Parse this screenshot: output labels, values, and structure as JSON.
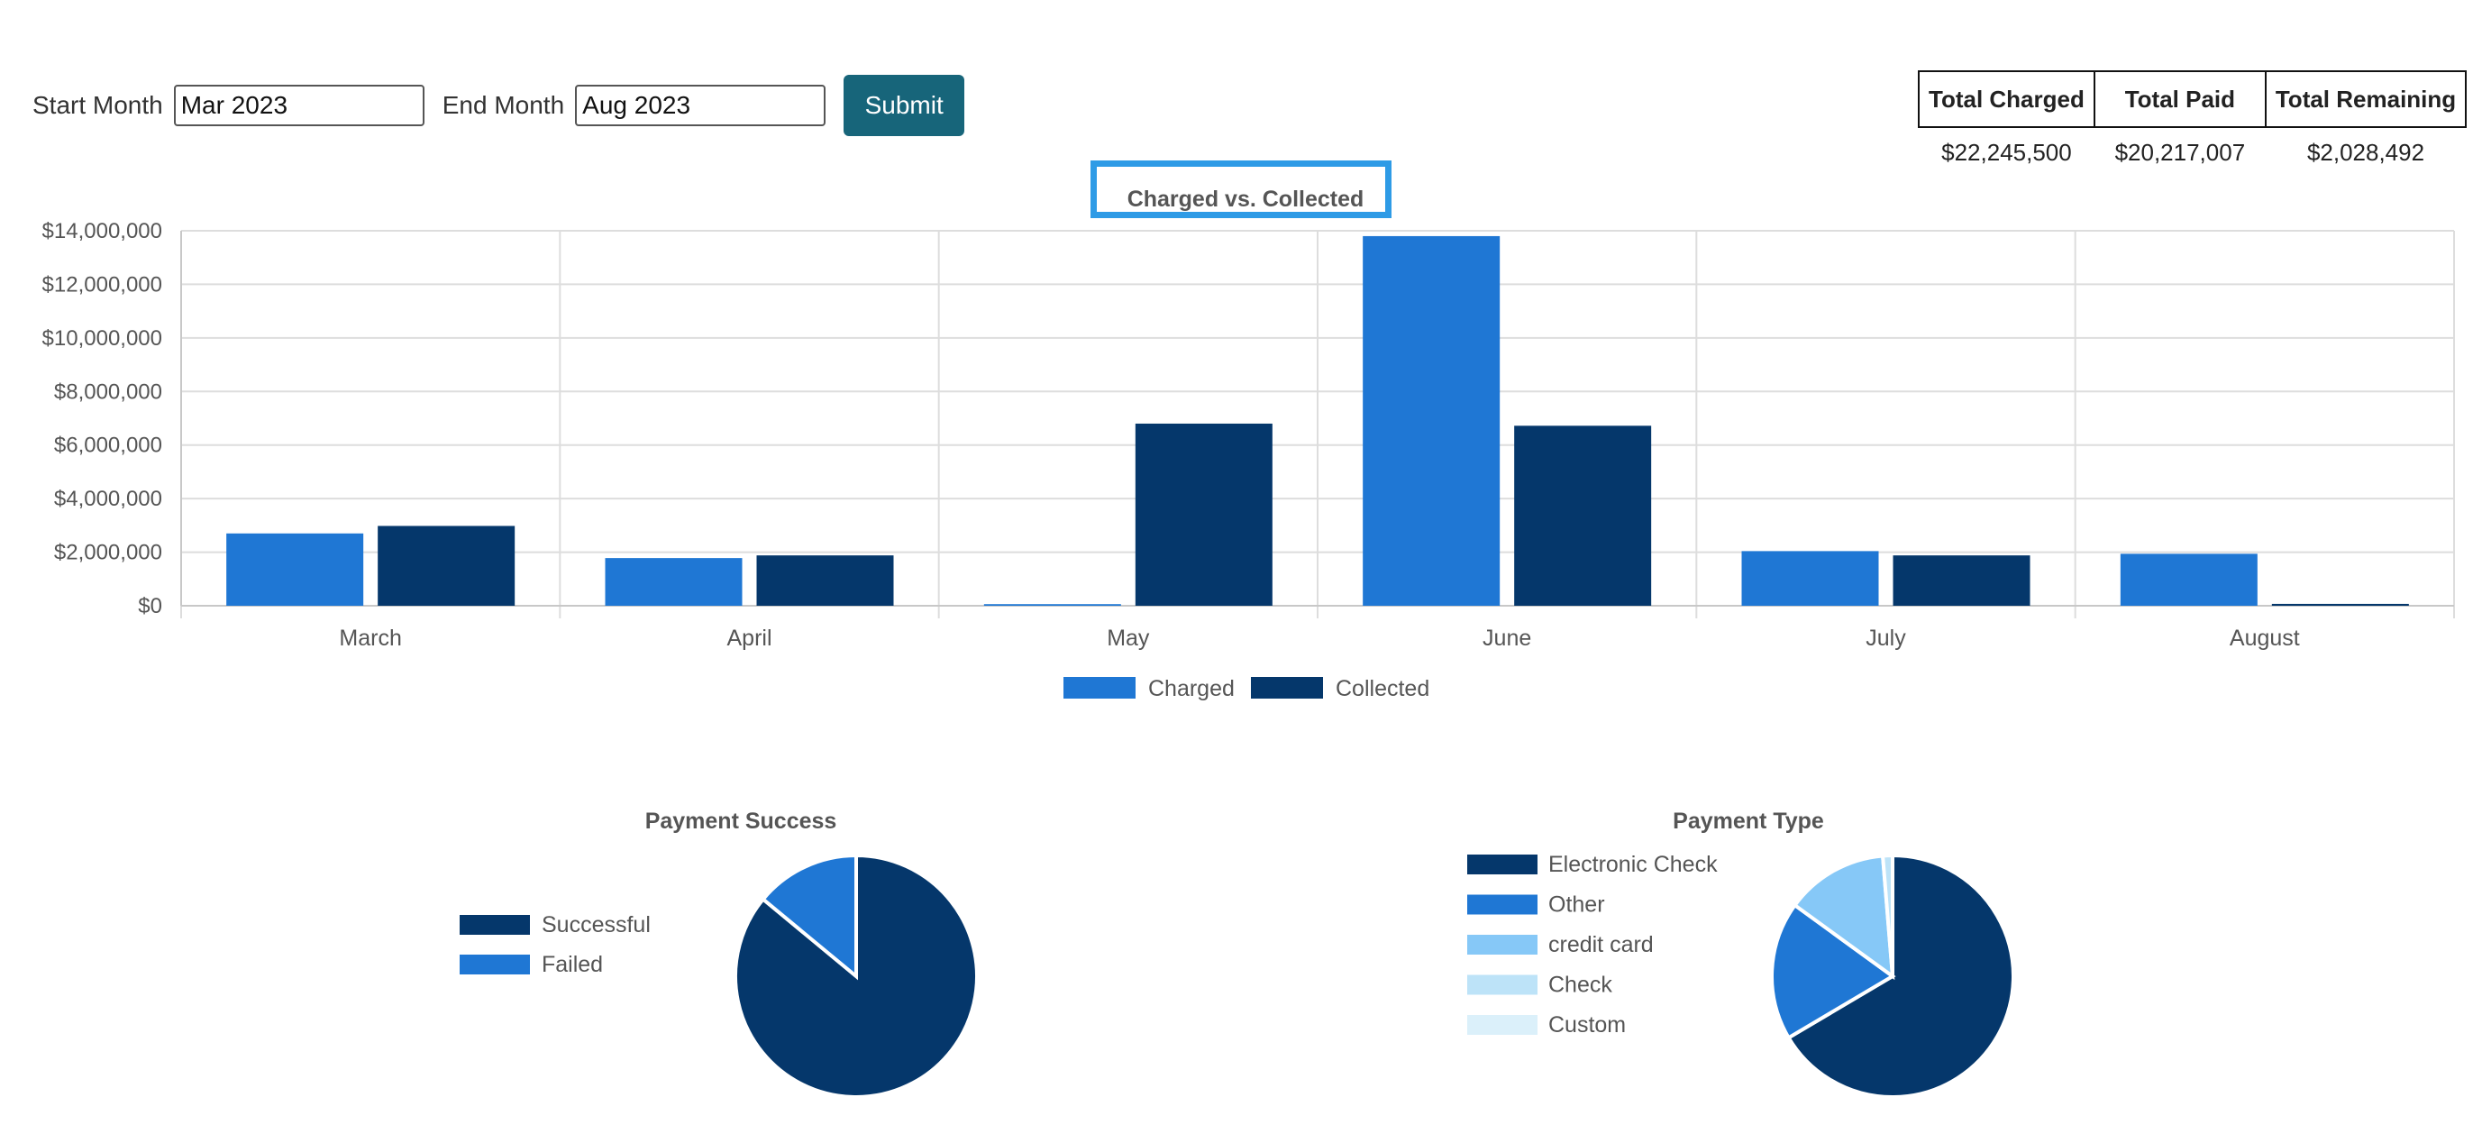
{
  "filters": {
    "start_label": "Start Month",
    "start_value": "Mar 2023",
    "end_label": "End Month",
    "end_value": "Aug 2023",
    "submit_label": "Submit"
  },
  "totals": {
    "headers": [
      "Total Charged",
      "Total Paid",
      "Total Remaining"
    ],
    "values": [
      "$22,245,500",
      "$20,217,007",
      "$2,028,492"
    ]
  },
  "colors": {
    "charged": "#1f77d4",
    "collected": "#05376b",
    "credit_card": "#86c8f7",
    "check": "#bde3f8",
    "custom": "#dbf0fa",
    "title_highlight": "#2e9be6",
    "submit": "#17657a"
  },
  "chart_data": [
    {
      "type": "bar",
      "title": "Charged vs. Collected",
      "categories": [
        "March",
        "April",
        "May",
        "June",
        "July",
        "August"
      ],
      "series": [
        {
          "name": "Charged",
          "values": [
            2700000,
            1780000,
            60000,
            13800000,
            2040000,
            1940000
          ]
        },
        {
          "name": "Collected",
          "values": [
            2980000,
            1880000,
            6800000,
            6720000,
            1880000,
            70000
          ]
        }
      ],
      "ylim": [
        0,
        14000000
      ],
      "yticks": [
        0,
        2000000,
        4000000,
        6000000,
        8000000,
        10000000,
        12000000,
        14000000
      ],
      "ytick_labels": [
        "$0",
        "$2,000,000",
        "$4,000,000",
        "$6,000,000",
        "$8,000,000",
        "$10,000,000",
        "$12,000,000",
        "$14,000,000"
      ],
      "grid": true,
      "legend_position": "bottom"
    },
    {
      "type": "pie",
      "title": "Payment Success",
      "labels": [
        "Successful",
        "Failed"
      ],
      "values": [
        86,
        14
      ],
      "legend_position": "left"
    },
    {
      "type": "pie",
      "title": "Payment Type",
      "labels": [
        "Electronic Check",
        "Other",
        "credit card",
        "Check",
        "Custom"
      ],
      "values": [
        66.5,
        18.5,
        13.7,
        1.3,
        0
      ],
      "legend_position": "left"
    }
  ]
}
